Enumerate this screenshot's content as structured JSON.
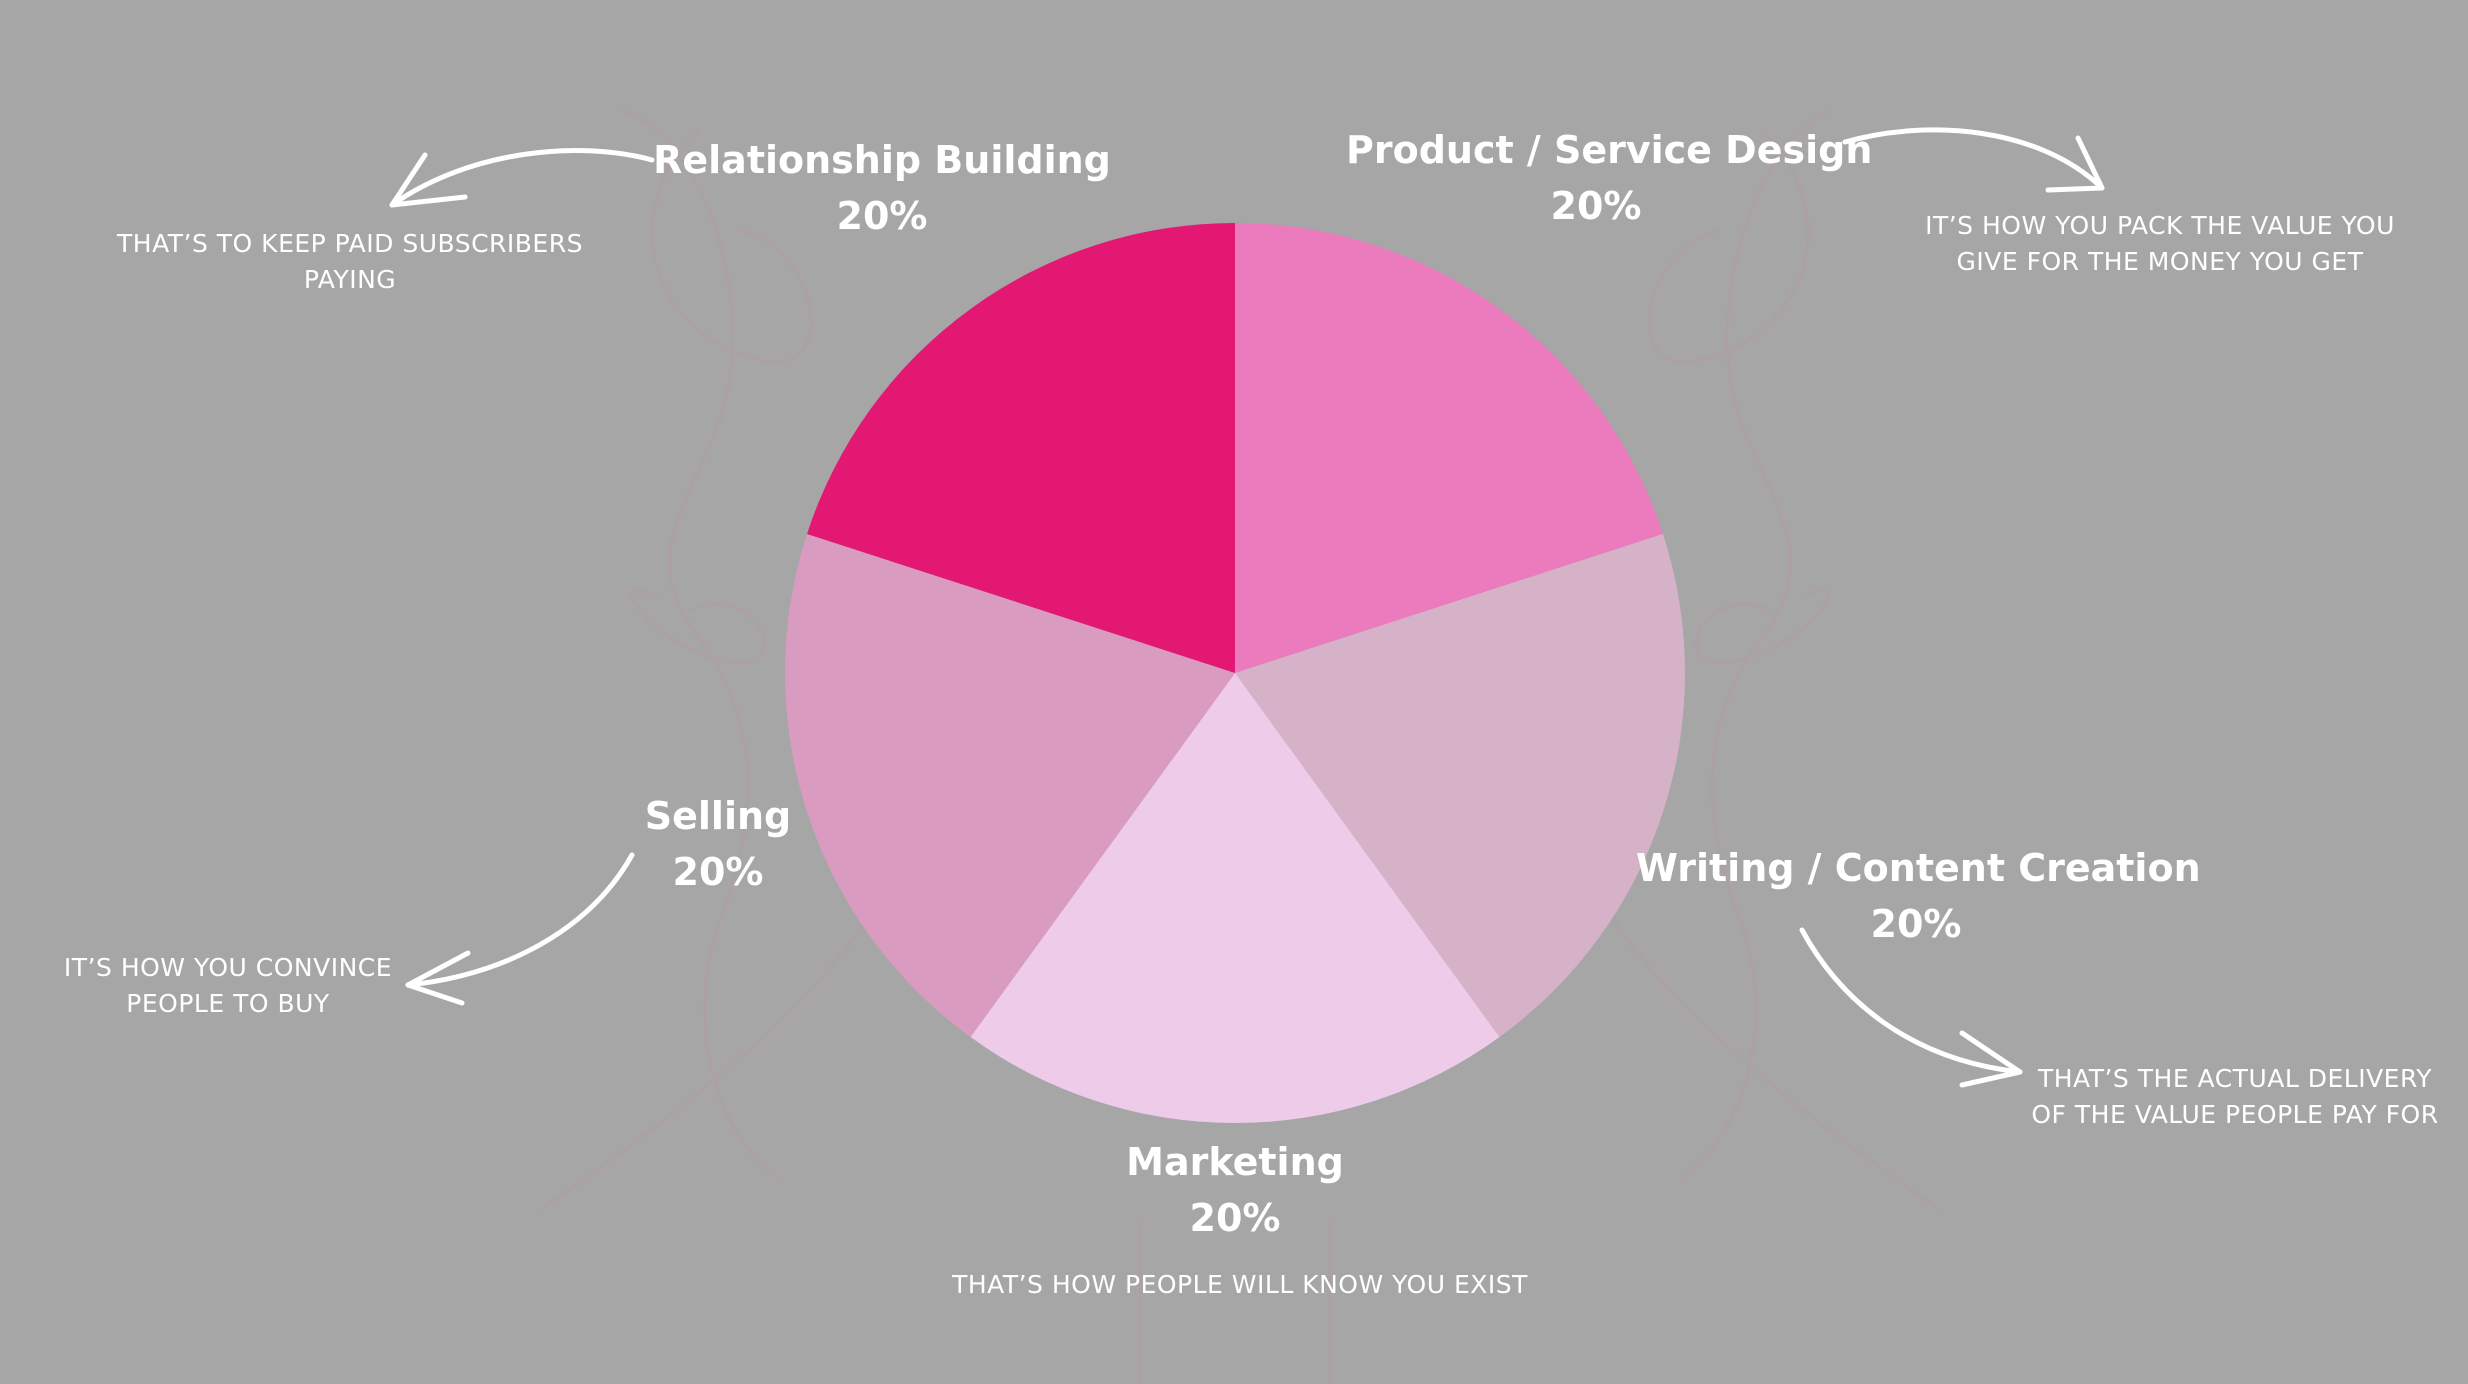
{
  "chart_data": {
    "type": "pie",
    "slices": [
      {
        "label": "Product / Service Design",
        "value": 20,
        "value_label": "20%",
        "color": "#ec7bbe",
        "description": "IT’S HOW YOU PACK THE VALUE YOU GIVE FOR THE MONEY YOU GET"
      },
      {
        "label": "Writing / Content Creation",
        "value": 20,
        "value_label": "20%",
        "color": "#d6b2c8",
        "description": "THAT’S THE ACTUAL DELIVERY OF THE VALUE PEOPLE PAY FOR"
      },
      {
        "label": "Marketing",
        "value": 20,
        "value_label": "20%",
        "color": "#efcbea",
        "description": "THAT’S HOW PEOPLE WILL KNOW YOU EXIST"
      },
      {
        "label": "Selling",
        "value": 20,
        "value_label": "20%",
        "color": "#da9bc0",
        "description": "IT’S HOW YOU CONVINCE PEOPLE TO BUY"
      },
      {
        "label": "Relationship Building",
        "value": 20,
        "value_label": "20%",
        "color": "#e21872",
        "description": "THAT’S TO KEEP PAID SUBSCRIBERS PAYING"
      }
    ]
  },
  "colors": {
    "background": "#a6a6a6",
    "text": "#ffffff"
  }
}
